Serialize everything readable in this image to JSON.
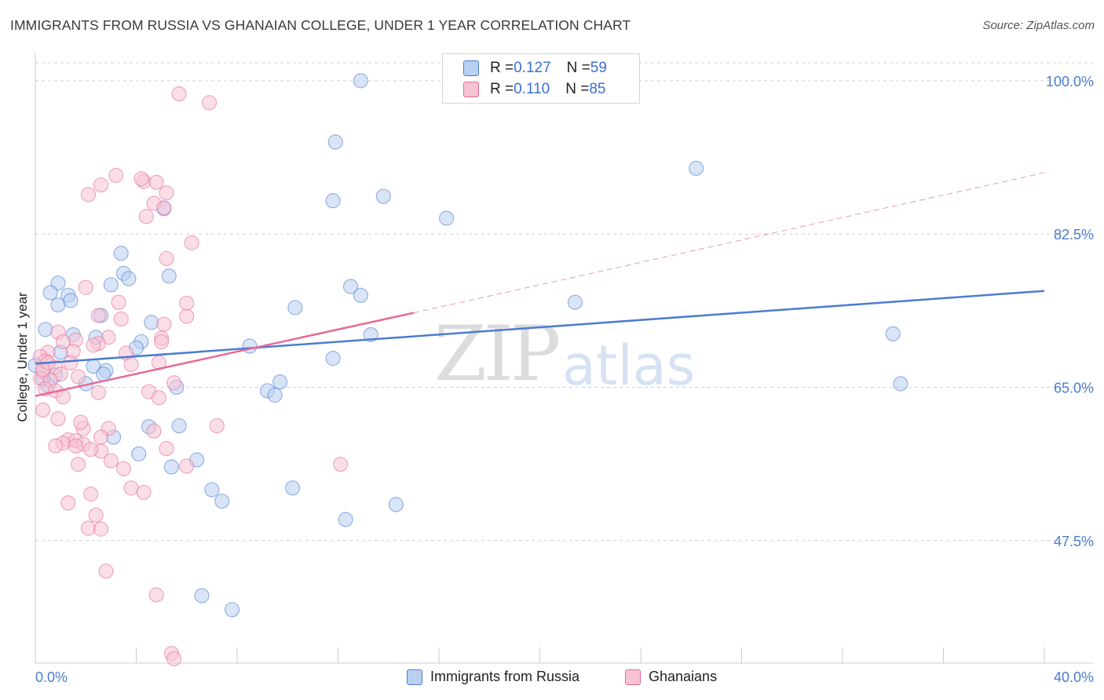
{
  "title": "IMMIGRANTS FROM RUSSIA VS GHANAIAN COLLEGE, UNDER 1 YEAR CORRELATION CHART",
  "source": "Source: ZipAtlas.com",
  "watermark": {
    "zip": "ZIP",
    "atlas": "atlas"
  },
  "colors": {
    "blue": "#4a7cd1",
    "blue_fill": "#b9d0f0",
    "pink": "#e76a97",
    "pink_fill": "#f6c3d3",
    "grid": "#cfcfcf"
  },
  "legend": {
    "rows": [
      {
        "r_label": "R = ",
        "r_value": "0.127",
        "n_label": "N = ",
        "n_value": "59"
      },
      {
        "r_label": "R = ",
        "r_value": "0.110",
        "n_label": "N = ",
        "n_value": "85"
      }
    ]
  },
  "bottom_legend": [
    {
      "label": "Immigrants from Russia"
    },
    {
      "label": "Ghanaians"
    }
  ],
  "chart_data": {
    "type": "scatter",
    "title": "IMMIGRANTS FROM RUSSIA VS GHANAIAN COLLEGE, UNDER 1 YEAR CORRELATION CHART",
    "xlabel": "",
    "ylabel": "College, Under 1 year",
    "xlim": [
      0,
      40
    ],
    "ylim": [
      33.5,
      102.5
    ],
    "x_tick_labels": [
      "0.0%",
      "40.0%"
    ],
    "y_ticks": [
      47.5,
      65.0,
      82.5,
      100.0
    ],
    "y_tick_labels": [
      "47.5%",
      "65.0%",
      "82.5%",
      "100.0%"
    ],
    "legend_position": "top-center",
    "series": [
      {
        "name": "Immigrants from Russia",
        "color": "#4a7cd1",
        "R": 0.127,
        "N": 59,
        "trend": {
          "x0": 0.0,
          "y0": 67.7,
          "x1": 40.0,
          "y1": 76.0
        },
        "points": [
          [
            12.9,
            100.0
          ],
          [
            11.9,
            93.0
          ],
          [
            26.2,
            90.0
          ],
          [
            11.8,
            86.3
          ],
          [
            13.8,
            86.8
          ],
          [
            16.3,
            84.3
          ],
          [
            5.1,
            85.4
          ],
          [
            3.4,
            80.3
          ],
          [
            3.5,
            78.0
          ],
          [
            3.7,
            77.4
          ],
          [
            5.3,
            77.7
          ],
          [
            3.0,
            76.7
          ],
          [
            0.9,
            76.9
          ],
          [
            0.6,
            75.8
          ],
          [
            1.3,
            75.5
          ],
          [
            0.9,
            74.4
          ],
          [
            1.4,
            74.9
          ],
          [
            12.5,
            76.5
          ],
          [
            12.9,
            75.5
          ],
          [
            21.4,
            74.7
          ],
          [
            10.3,
            74.1
          ],
          [
            2.6,
            73.2
          ],
          [
            4.6,
            72.4
          ],
          [
            0.4,
            71.6
          ],
          [
            1.5,
            71.0
          ],
          [
            2.4,
            70.7
          ],
          [
            4.2,
            70.2
          ],
          [
            8.5,
            69.7
          ],
          [
            13.3,
            71.0
          ],
          [
            34.0,
            71.1
          ],
          [
            11.8,
            68.3
          ],
          [
            2.3,
            67.4
          ],
          [
            2.8,
            66.9
          ],
          [
            2.7,
            66.5
          ],
          [
            0.8,
            66.4
          ],
          [
            2.0,
            65.4
          ],
          [
            5.6,
            65.0
          ],
          [
            9.7,
            65.6
          ],
          [
            9.2,
            64.6
          ],
          [
            9.5,
            64.1
          ],
          [
            0.5,
            65.2
          ],
          [
            34.3,
            65.4
          ],
          [
            4.5,
            60.5
          ],
          [
            5.7,
            60.6
          ],
          [
            3.1,
            59.3
          ],
          [
            4.1,
            57.4
          ],
          [
            6.4,
            56.7
          ],
          [
            5.4,
            55.9
          ],
          [
            7.0,
            53.3
          ],
          [
            7.4,
            52.0
          ],
          [
            10.2,
            53.5
          ],
          [
            14.3,
            51.6
          ],
          [
            12.3,
            49.9
          ],
          [
            6.6,
            41.2
          ],
          [
            7.8,
            39.6
          ],
          [
            0.0,
            67.5
          ],
          [
            0.3,
            66.0
          ],
          [
            1.0,
            69.0
          ],
          [
            4.0,
            69.5
          ]
        ]
      },
      {
        "name": "Ghanaians",
        "color": "#e76a97",
        "R": 0.11,
        "N": 85,
        "trend": {
          "x0": 0.0,
          "y0": 64.0,
          "x1": 15.0,
          "y1": 73.5
        },
        "trend_ext": {
          "x0": 15.0,
          "y0": 73.5,
          "x1": 40.0,
          "y1": 89.5
        },
        "points": [
          [
            5.7,
            98.5
          ],
          [
            6.9,
            97.5
          ],
          [
            3.2,
            89.2
          ],
          [
            4.3,
            88.5
          ],
          [
            4.2,
            88.8
          ],
          [
            4.8,
            88.4
          ],
          [
            2.6,
            88.1
          ],
          [
            5.2,
            87.2
          ],
          [
            2.1,
            87.0
          ],
          [
            4.7,
            86.0
          ],
          [
            5.1,
            85.5
          ],
          [
            4.4,
            84.5
          ],
          [
            6.2,
            81.5
          ],
          [
            5.2,
            79.7
          ],
          [
            2.0,
            76.4
          ],
          [
            3.3,
            74.7
          ],
          [
            6.0,
            74.6
          ],
          [
            2.5,
            73.2
          ],
          [
            6.0,
            73.1
          ],
          [
            3.4,
            72.8
          ],
          [
            5.1,
            72.2
          ],
          [
            0.9,
            71.3
          ],
          [
            2.9,
            70.7
          ],
          [
            5.0,
            70.6
          ],
          [
            5.0,
            70.2
          ],
          [
            2.5,
            70.0
          ],
          [
            1.6,
            70.4
          ],
          [
            1.1,
            70.2
          ],
          [
            2.3,
            69.8
          ],
          [
            0.5,
            69.0
          ],
          [
            1.5,
            69.1
          ],
          [
            3.6,
            68.9
          ],
          [
            0.2,
            68.5
          ],
          [
            0.4,
            68.0
          ],
          [
            1.4,
            67.8
          ],
          [
            4.9,
            67.8
          ],
          [
            0.8,
            67.3
          ],
          [
            3.8,
            67.6
          ],
          [
            0.3,
            66.8
          ],
          [
            1.0,
            66.5
          ],
          [
            0.2,
            66.0
          ],
          [
            1.7,
            66.2
          ],
          [
            0.6,
            65.8
          ],
          [
            5.5,
            65.5
          ],
          [
            0.4,
            64.8
          ],
          [
            0.8,
            64.6
          ],
          [
            4.5,
            64.5
          ],
          [
            2.5,
            64.4
          ],
          [
            1.1,
            63.9
          ],
          [
            4.9,
            63.8
          ],
          [
            0.3,
            62.4
          ],
          [
            0.9,
            61.4
          ],
          [
            7.2,
            60.6
          ],
          [
            1.9,
            60.3
          ],
          [
            2.9,
            60.3
          ],
          [
            4.7,
            60.0
          ],
          [
            2.6,
            59.3
          ],
          [
            1.3,
            59.0
          ],
          [
            1.6,
            58.9
          ],
          [
            1.1,
            58.6
          ],
          [
            1.9,
            58.5
          ],
          [
            0.8,
            58.3
          ],
          [
            1.6,
            58.3
          ],
          [
            5.2,
            58.0
          ],
          [
            2.6,
            57.7
          ],
          [
            2.2,
            57.9
          ],
          [
            3.0,
            56.6
          ],
          [
            1.7,
            56.2
          ],
          [
            3.5,
            55.7
          ],
          [
            12.1,
            56.2
          ],
          [
            3.8,
            53.5
          ],
          [
            4.3,
            53.0
          ],
          [
            2.2,
            52.8
          ],
          [
            1.3,
            51.8
          ],
          [
            2.4,
            50.4
          ],
          [
            2.1,
            48.9
          ],
          [
            2.6,
            48.8
          ],
          [
            2.8,
            44.0
          ],
          [
            4.8,
            41.3
          ],
          [
            5.4,
            34.6
          ],
          [
            5.5,
            34.0
          ],
          [
            0.3,
            67.0
          ],
          [
            0.5,
            67.8
          ],
          [
            6.0,
            56.0
          ],
          [
            1.8,
            61.0
          ]
        ]
      }
    ]
  }
}
